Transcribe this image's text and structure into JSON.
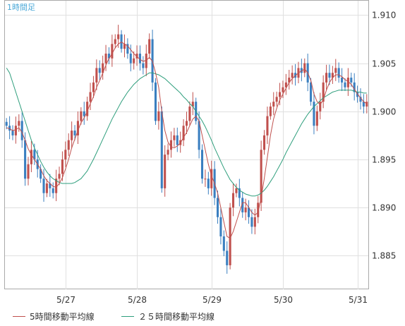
{
  "chart_data": {
    "type": "candlestick",
    "timeframe_label": "1時間足",
    "x_tick_labels": [
      "5/27",
      "5/28",
      "5/29",
      "5/30",
      "5/31"
    ],
    "y_tick_labels": [
      "1.910",
      "1.905",
      "1.900",
      "1.895",
      "1.890",
      "1.885"
    ],
    "y_ticks": [
      1.91,
      1.905,
      1.9,
      1.895,
      1.89,
      1.885
    ],
    "ylim": [
      1.8815,
      1.9115
    ],
    "grid": true,
    "legend": [
      {
        "label": "5時間移動平均線",
        "color": "#c0504d"
      },
      {
        "label": "２５時間移動平均線",
        "color": "#2e9e7c"
      }
    ],
    "colors": {
      "up": "#c0504d",
      "down": "#3a7fc0",
      "ma5": "#c0504d",
      "ma25": "#2e9e7c"
    },
    "series": [
      {
        "name": "close",
        "values": [
          1.8985,
          1.898,
          1.8975,
          1.8985,
          1.899,
          1.897,
          1.893,
          1.8945,
          1.896,
          1.895,
          1.894,
          1.893,
          1.8915,
          1.8925,
          1.892,
          1.8915,
          1.893,
          1.8935,
          1.895,
          1.896,
          1.897,
          1.898,
          1.8975,
          1.899,
          1.9,
          1.8995,
          1.901,
          1.902,
          1.903,
          1.9045,
          1.904,
          1.905,
          1.906,
          1.9055,
          1.907,
          1.9075,
          1.908,
          1.9065,
          1.907,
          1.906,
          1.905,
          1.9055,
          1.906,
          1.905,
          1.9045,
          1.906,
          1.9075,
          1.903,
          1.899,
          1.9,
          1.892,
          1.8955,
          1.896,
          1.897,
          1.8975,
          1.8965,
          1.897,
          1.8985,
          1.899,
          1.9005,
          1.901,
          1.899,
          1.896,
          1.893,
          1.893,
          1.892,
          1.894,
          1.891,
          1.889,
          1.887,
          1.8855,
          1.884,
          1.89,
          1.8915,
          1.892,
          1.891,
          1.8895,
          1.89,
          1.889,
          1.888,
          1.889,
          1.8905,
          1.896,
          1.8975,
          1.8995,
          1.9005,
          1.901,
          1.9015,
          1.902,
          1.9025,
          1.903,
          1.9035,
          1.904,
          1.9035,
          1.9045,
          1.904,
          1.905,
          1.903,
          1.901,
          1.8985,
          1.9,
          1.901,
          1.903,
          1.904,
          1.9035,
          1.904,
          1.9045,
          1.9035,
          1.903,
          1.9025,
          1.9035,
          1.903,
          1.902,
          1.9015,
          1.901,
          1.9005,
          1.901
        ]
      },
      {
        "name": "ma5",
        "values": [
          1.8983,
          1.8982,
          1.898,
          1.8981,
          1.8983,
          1.8978,
          1.897,
          1.8961,
          1.8955,
          1.895,
          1.8945,
          1.894,
          1.8933,
          1.8928,
          1.8925,
          1.8922,
          1.8921,
          1.8925,
          1.8931,
          1.894,
          1.895,
          1.8962,
          1.8971,
          1.898,
          1.8988,
          1.8993,
          1.9,
          1.9008,
          1.9015,
          1.9025,
          1.9032,
          1.904,
          1.9048,
          1.9055,
          1.906,
          1.9066,
          1.907,
          1.9072,
          1.907,
          1.9068,
          1.9064,
          1.906,
          1.9057,
          1.9054,
          1.9052,
          1.9053,
          1.9056,
          1.9052,
          1.904,
          1.9025,
          1.9,
          1.898,
          1.8968,
          1.8963,
          1.8962,
          1.8964,
          1.8967,
          1.8973,
          1.8978,
          1.8985,
          1.8992,
          1.8995,
          1.899,
          1.8975,
          1.896,
          1.8945,
          1.8933,
          1.8925,
          1.8915,
          1.89,
          1.8885,
          1.887,
          1.8868,
          1.8875,
          1.8885,
          1.8895,
          1.8905,
          1.8905,
          1.89,
          1.8895,
          1.8892,
          1.8895,
          1.891,
          1.893,
          1.8952,
          1.8975,
          1.8992,
          1.9003,
          1.9012,
          1.9018,
          1.9024,
          1.903,
          1.9034,
          1.9037,
          1.904,
          1.9042,
          1.9044,
          1.904,
          1.9032,
          1.9018,
          1.901,
          1.9007,
          1.9012,
          1.9022,
          1.903,
          1.9035,
          1.9038,
          1.9038,
          1.9036,
          1.9033,
          1.9031,
          1.9028,
          1.9023,
          1.9018,
          1.9014,
          1.901,
          1.9008
        ]
      },
      {
        "name": "ma25",
        "values": [
          1.9045,
          1.904,
          1.903,
          1.902,
          1.901,
          1.9,
          1.899,
          1.898,
          1.897,
          1.8962,
          1.8955,
          1.8948,
          1.8942,
          1.8937,
          1.8933,
          1.893,
          1.8928,
          1.8926,
          1.8925,
          1.8925,
          1.8925,
          1.8925,
          1.8926,
          1.8928,
          1.893,
          1.8934,
          1.8938,
          1.8944,
          1.895,
          1.8957,
          1.8964,
          1.8971,
          1.8978,
          1.8985,
          1.8992,
          1.8998,
          1.9004,
          1.901,
          1.9015,
          1.902,
          1.9024,
          1.9028,
          1.9031,
          1.9034,
          1.9036,
          1.9038,
          1.904,
          1.904,
          1.9039,
          1.9038,
          1.9036,
          1.9034,
          1.9031,
          1.9028,
          1.9025,
          1.9022,
          1.9019,
          1.9015,
          1.9012,
          1.9008,
          1.9005,
          1.9,
          1.8995,
          1.899,
          1.8984,
          1.8977,
          1.897,
          1.8962,
          1.8955,
          1.8948,
          1.8941,
          1.8935,
          1.8929,
          1.8925,
          1.8921,
          1.8918,
          1.8916,
          1.8914,
          1.8913,
          1.8912,
          1.8912,
          1.8913,
          1.8915,
          1.8918,
          1.8922,
          1.8927,
          1.8932,
          1.8938,
          1.8944,
          1.895,
          1.8957,
          1.8963,
          1.8969,
          1.8975,
          1.8981,
          1.8987,
          1.8992,
          1.8997,
          1.9001,
          1.9005,
          1.9008,
          1.9011,
          1.9014,
          1.9016,
          1.9018,
          1.902,
          1.9021,
          1.9022,
          1.9022,
          1.9022,
          1.9022,
          1.9022,
          1.9021,
          1.902,
          1.902,
          1.9019,
          1.9019
        ]
      }
    ]
  }
}
